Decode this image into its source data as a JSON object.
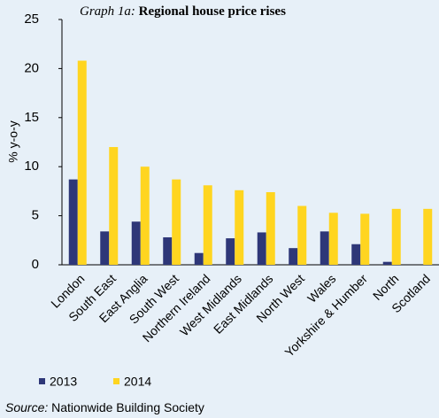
{
  "chart_data": {
    "type": "bar",
    "title_label": "Graph 1a:",
    "title": "Regional house price rises",
    "y_label": "% y-o-y",
    "categories": [
      "London",
      "South East",
      "East Anglia",
      "South West",
      "Northern Ireland",
      "West Midlands",
      "East Midlands",
      "North West",
      "Wales",
      "Yorkshire & Humber",
      "North",
      "Scotland"
    ],
    "series": [
      {
        "name": "2013",
        "color": "#2e3778",
        "values": [
          8.7,
          3.4,
          4.4,
          2.8,
          1.2,
          2.7,
          3.3,
          1.7,
          3.4,
          2.1,
          0.3,
          0
        ]
      },
      {
        "name": "2014",
        "color": "#ffd520",
        "values": [
          20.8,
          12.0,
          10.0,
          8.7,
          8.1,
          7.6,
          7.4,
          6.0,
          5.3,
          5.2,
          5.7,
          5.7
        ]
      }
    ],
    "ylim": [
      0,
      25
    ],
    "yticks": [
      0,
      5,
      10,
      15,
      20,
      25
    ],
    "grid": false,
    "source_label": "Source:",
    "source": "Nationwide Building Society"
  }
}
